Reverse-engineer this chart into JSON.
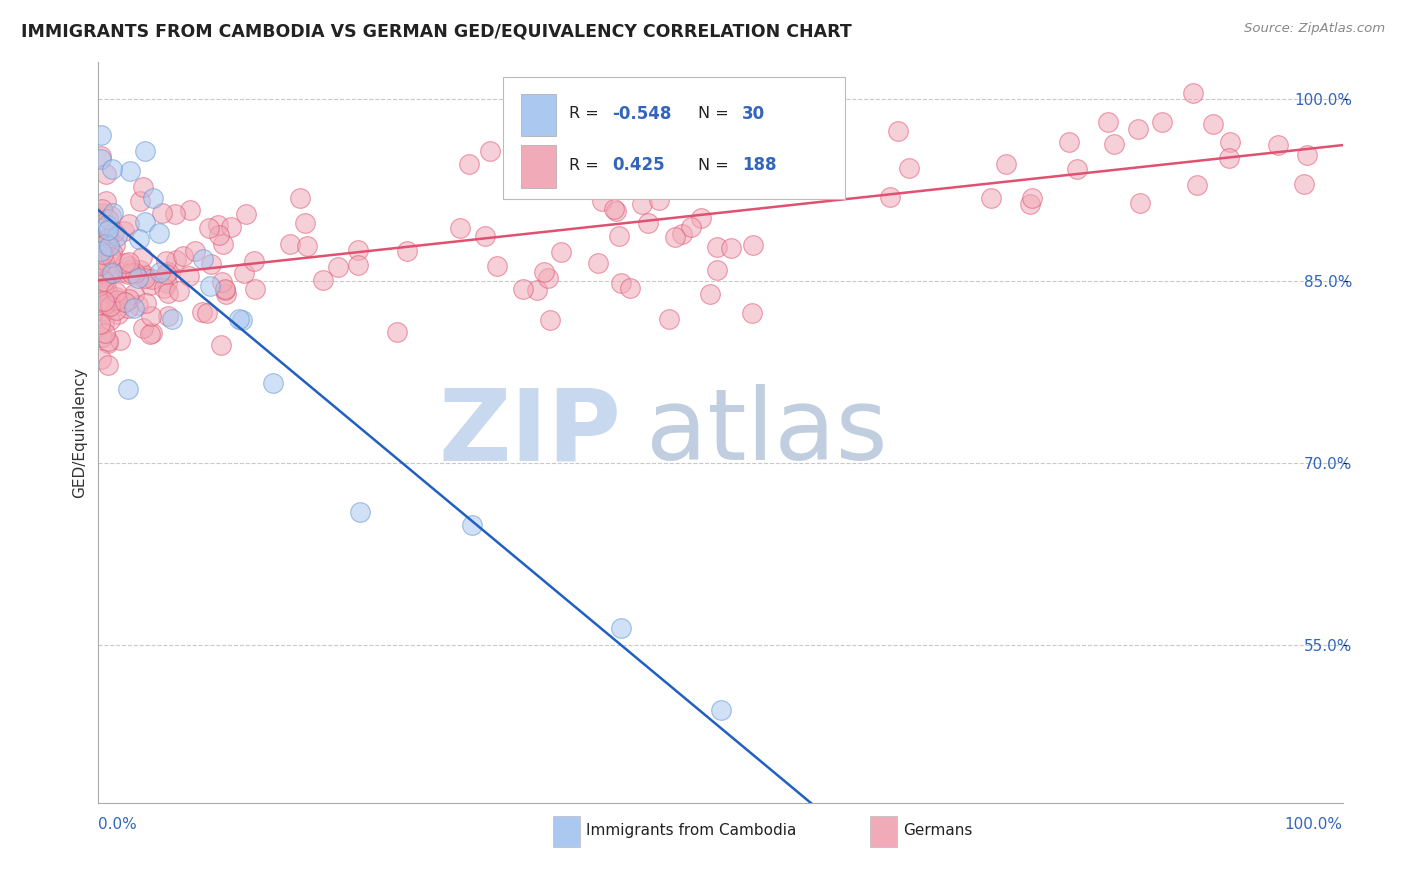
{
  "title": "IMMIGRANTS FROM CAMBODIA VS GERMAN GED/EQUIVALENCY CORRELATION CHART",
  "source": "Source: ZipAtlas.com",
  "ylabel": "GED/Equivalency",
  "xlim": [
    0,
    1
  ],
  "ylim": [
    0.42,
    1.03
  ],
  "yticks": [
    0.55,
    0.7,
    0.85,
    1.0
  ],
  "ytick_labels": [
    "55.0%",
    "70.0%",
    "85.0%",
    "100.0%"
  ],
  "legend_r_cambodia": "-0.548",
  "legend_n_cambodia": "30",
  "legend_r_german": "0.425",
  "legend_n_german": "188",
  "legend_label_cambodia": "Immigrants from Cambodia",
  "legend_label_german": "Germans",
  "color_cambodia": "#aac8f0",
  "color_german": "#f0aab8",
  "line_color_cambodia": "#2060c0",
  "line_color_german": "#e05070",
  "background_color": "#ffffff",
  "grid_color": "#bbbbbb",
  "watermark_zip_color": "#c8d8ee",
  "watermark_atlas_color": "#c0cedf"
}
